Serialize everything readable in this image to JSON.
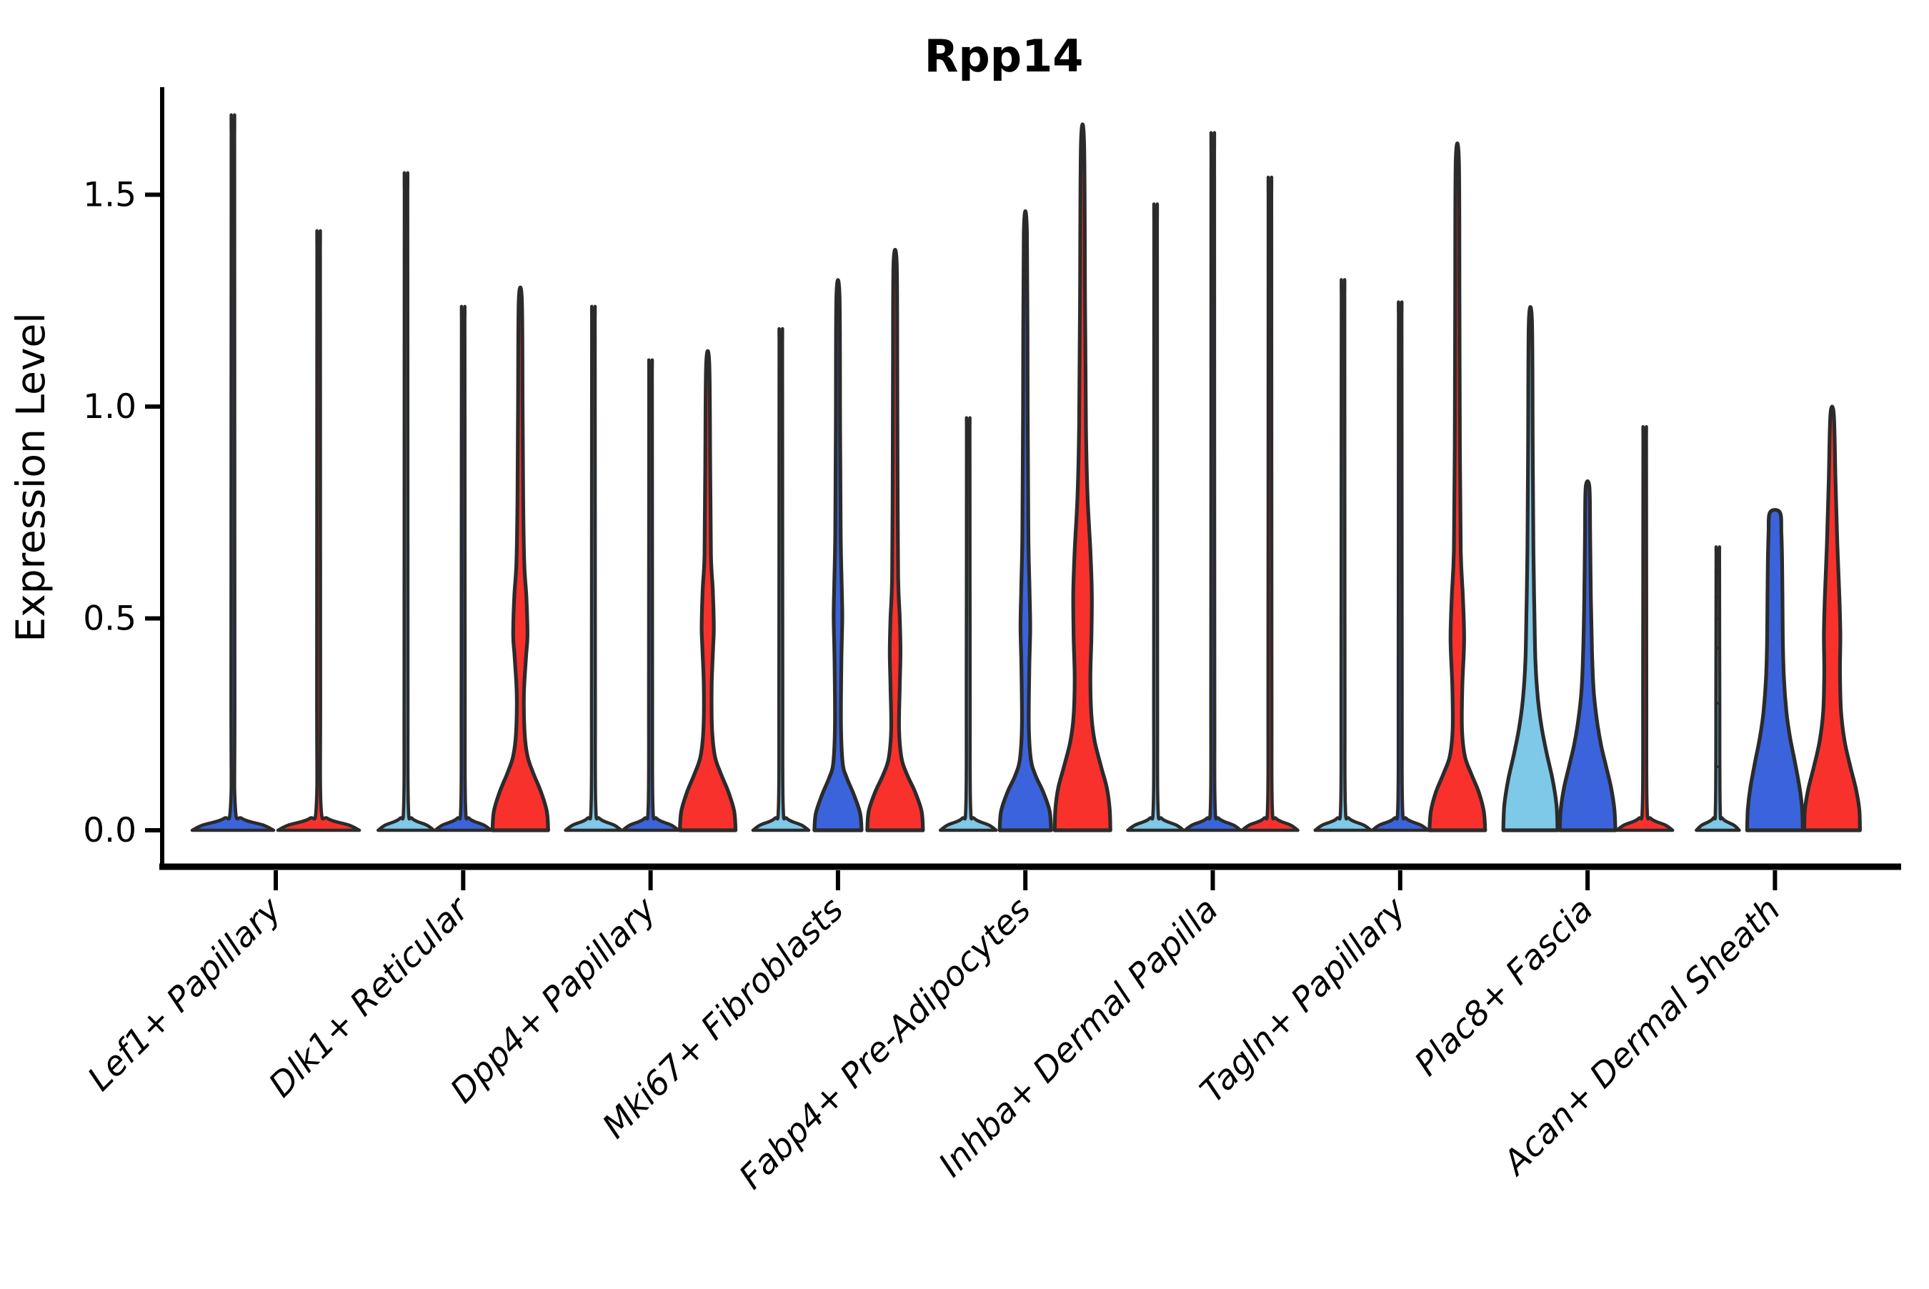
{
  "chart_data": {
    "type": "violin",
    "title": "Rpp14",
    "xlabel": "",
    "ylabel": "Expression Level",
    "ylim": [
      0,
      1.72
    ],
    "yticks": [
      "0.0",
      "0.5",
      "1.0",
      "1.5"
    ],
    "ytick_values": [
      0.0,
      0.5,
      1.0,
      1.5
    ],
    "grid": false,
    "legend": "none",
    "palette": {
      "lightblue": "#7EC8E8",
      "blue": "#3B63DB",
      "red": "#F8312D",
      "outline": "#2B2B2B"
    },
    "categories": [
      "Lef1+ Papillary",
      "Dlk1+ Reticular",
      "Dpp4+ Papillary",
      "Mki67+ Fibroblasts",
      "Fabp4+ Pre-Adipocytes",
      "Inhba+ Dermal Papilla",
      "Tagln+ Papillary",
      "Plac8+ Fascia",
      "Acan+ Dermal Sheath"
    ],
    "violins": [
      [
        {
          "color": "#3B63DB",
          "max": 1.63,
          "kind": "spike",
          "foot_hw": 57,
          "tip": "sharp"
        },
        {
          "color": "#F8312D",
          "max": 1.37,
          "kind": "spike",
          "foot_hw": 57,
          "tip": "sharp"
        }
      ],
      [
        {
          "color": "#7EC8E8",
          "max": 1.5,
          "kind": "spike",
          "foot_hw": 39,
          "tip": "sharp"
        },
        {
          "color": "#3B63DB",
          "max": 1.2,
          "kind": "spike",
          "foot_hw": 39,
          "tip": "sharp"
        },
        {
          "color": "#F8312D",
          "max": 1.25,
          "kind": "shaped",
          "tip": "sharp",
          "profile": [
            [
              0,
              39
            ],
            [
              0.045,
              37
            ],
            [
              0.09,
              29
            ],
            [
              0.135,
              18
            ],
            [
              0.175,
              10
            ],
            [
              0.23,
              6
            ],
            [
              0.32,
              5
            ],
            [
              0.41,
              8
            ],
            [
              0.46,
              10
            ],
            [
              0.55,
              8.5
            ],
            [
              0.63,
              5.5
            ],
            [
              0.78,
              4
            ],
            [
              1.0,
              3.2
            ],
            [
              1.25,
              2.2
            ]
          ]
        }
      ],
      [
        {
          "color": "#7EC8E8",
          "max": 1.2,
          "kind": "spike",
          "foot_hw": 39,
          "tip": "sharp"
        },
        {
          "color": "#3B63DB",
          "max": 1.08,
          "kind": "spike",
          "foot_hw": 39,
          "tip": "sharp"
        },
        {
          "color": "#F8312D",
          "max": 1.1,
          "kind": "shaped",
          "tip": "sharp",
          "profile": [
            [
              0,
              39
            ],
            [
              0.045,
              37
            ],
            [
              0.09,
              29
            ],
            [
              0.135,
              18
            ],
            [
              0.175,
              10
            ],
            [
              0.24,
              6
            ],
            [
              0.34,
              5.5
            ],
            [
              0.43,
              7.5
            ],
            [
              0.48,
              8.5
            ],
            [
              0.57,
              7
            ],
            [
              0.65,
              4.5
            ],
            [
              0.85,
              3.5
            ],
            [
              1.1,
              2.2
            ]
          ]
        }
      ],
      [
        {
          "color": "#7EC8E8",
          "max": 1.15,
          "kind": "spike",
          "foot_hw": 39,
          "tip": "sharp"
        },
        {
          "color": "#3B63DB",
          "max": 1.26,
          "kind": "shaped",
          "tip": "sharp",
          "profile": [
            [
              0,
              33
            ],
            [
              0.04,
              31
            ],
            [
              0.085,
              22
            ],
            [
              0.125,
              12
            ],
            [
              0.16,
              6.5
            ],
            [
              0.25,
              4.2
            ],
            [
              0.4,
              4.8
            ],
            [
              0.5,
              6
            ],
            [
              0.58,
              5.2
            ],
            [
              0.7,
              3.8
            ],
            [
              0.95,
              3
            ],
            [
              1.26,
              2.2
            ]
          ]
        },
        {
          "color": "#F8312D",
          "max": 1.34,
          "kind": "shaped",
          "tip": "sharp",
          "profile": [
            [
              0,
              39
            ],
            [
              0.045,
              37
            ],
            [
              0.09,
              28
            ],
            [
              0.13,
              17
            ],
            [
              0.17,
              9
            ],
            [
              0.24,
              5.5
            ],
            [
              0.34,
              6.5
            ],
            [
              0.42,
              7.5
            ],
            [
              0.5,
              6.5
            ],
            [
              0.6,
              4.2
            ],
            [
              0.85,
              3.4
            ],
            [
              1.1,
              3
            ],
            [
              1.34,
              2.2
            ]
          ]
        }
      ],
      [
        {
          "color": "#7EC8E8",
          "max": 0.95,
          "kind": "spike",
          "foot_hw": 39,
          "tip": "sharp"
        },
        {
          "color": "#3B63DB",
          "max": 1.41,
          "kind": "shaped",
          "tip": "sharp",
          "profile": [
            [
              0,
              36
            ],
            [
              0.045,
              34
            ],
            [
              0.09,
              25
            ],
            [
              0.13,
              14
            ],
            [
              0.17,
              7.5
            ],
            [
              0.25,
              4.8
            ],
            [
              0.38,
              5.5
            ],
            [
              0.48,
              6.8
            ],
            [
              0.57,
              5.8
            ],
            [
              0.7,
              4.2
            ],
            [
              1.0,
              3.2
            ],
            [
              1.41,
              2.2
            ]
          ]
        },
        {
          "color": "#F8312D",
          "max": 1.62,
          "kind": "shaped",
          "tip": "sharp",
          "profile": [
            [
              0,
              39
            ],
            [
              0.05,
              38
            ],
            [
              0.1,
              34
            ],
            [
              0.15,
              26
            ],
            [
              0.21,
              17
            ],
            [
              0.27,
              12.5
            ],
            [
              0.36,
              11
            ],
            [
              0.46,
              12.5
            ],
            [
              0.56,
              13
            ],
            [
              0.66,
              11
            ],
            [
              0.79,
              7
            ],
            [
              0.95,
              4.8
            ],
            [
              1.25,
              3.5
            ],
            [
              1.62,
              2.2
            ]
          ]
        }
      ],
      [
        {
          "color": "#7EC8E8",
          "max": 1.43,
          "kind": "spike",
          "foot_hw": 39,
          "tip": "sharp"
        },
        {
          "color": "#3B63DB",
          "max": 1.59,
          "kind": "spike",
          "foot_hw": 39,
          "tip": "sharp"
        },
        {
          "color": "#F8312D",
          "max": 1.49,
          "kind": "spike",
          "foot_hw": 39,
          "tip": "sharp"
        }
      ],
      [
        {
          "color": "#7EC8E8",
          "max": 1.26,
          "kind": "spike",
          "foot_hw": 39,
          "tip": "sharp"
        },
        {
          "color": "#3B63DB",
          "max": 1.21,
          "kind": "spike",
          "foot_hw": 39,
          "tip": "sharp"
        },
        {
          "color": "#F8312D",
          "max": 1.58,
          "kind": "shaped",
          "tip": "sharp",
          "profile": [
            [
              0,
              39
            ],
            [
              0.045,
              37
            ],
            [
              0.09,
              30
            ],
            [
              0.135,
              19
            ],
            [
              0.175,
              10.5
            ],
            [
              0.24,
              6.5
            ],
            [
              0.34,
              7
            ],
            [
              0.45,
              9.5
            ],
            [
              0.55,
              7.8
            ],
            [
              0.66,
              4.8
            ],
            [
              0.9,
              3.6
            ],
            [
              1.25,
              3
            ],
            [
              1.58,
              2.2
            ]
          ]
        }
      ],
      [
        {
          "color": "#7EC8E8",
          "max": 1.2,
          "kind": "shaped",
          "tip": "sharp",
          "profile": [
            [
              0,
              38
            ],
            [
              0.06,
              36.5
            ],
            [
              0.12,
              31
            ],
            [
              0.18,
              23
            ],
            [
              0.24,
              16
            ],
            [
              0.31,
              10.5
            ],
            [
              0.4,
              7
            ],
            [
              0.52,
              5.5
            ],
            [
              0.66,
              4.2
            ],
            [
              0.92,
              3.2
            ],
            [
              1.2,
              2.2
            ]
          ]
        },
        {
          "color": "#3B63DB",
          "max": 0.81,
          "kind": "shaped",
          "tip": "sharp",
          "profile": [
            [
              0,
              39
            ],
            [
              0.05,
              37.5
            ],
            [
              0.1,
              33
            ],
            [
              0.15,
              26
            ],
            [
              0.2,
              19
            ],
            [
              0.26,
              13
            ],
            [
              0.33,
              8.5
            ],
            [
              0.42,
              6.2
            ],
            [
              0.55,
              4.6
            ],
            [
              0.7,
              3.6
            ],
            [
              0.81,
              2.6
            ]
          ]
        },
        {
          "color": "#F8312D",
          "max": 0.93,
          "kind": "spike",
          "foot_hw": 39,
          "tip": "sharp"
        }
      ],
      [
        {
          "color": "#7EC8E8",
          "max": 0.66,
          "kind": "spike",
          "foot_hw": 30,
          "tip": "sharp",
          "marks": [
            0.66,
            0.635,
            0.61,
            0.55,
            0.5,
            0.43,
            0.3,
            0.15
          ]
        },
        {
          "color": "#3B63DB",
          "max": 0.75,
          "kind": "shaped",
          "tip": "blunt",
          "profile": [
            [
              0,
              39
            ],
            [
              0.05,
              38
            ],
            [
              0.1,
              34.5
            ],
            [
              0.16,
              28
            ],
            [
              0.22,
              21
            ],
            [
              0.28,
              16
            ],
            [
              0.36,
              12.5
            ],
            [
              0.45,
              11
            ],
            [
              0.55,
              10.5
            ],
            [
              0.63,
              10
            ],
            [
              0.7,
              9
            ],
            [
              0.75,
              7
            ]
          ]
        },
        {
          "color": "#F8312D",
          "max": 0.98,
          "kind": "shaped",
          "tip": "sharp",
          "profile": [
            [
              0,
              39
            ],
            [
              0.05,
              38
            ],
            [
              0.1,
              33
            ],
            [
              0.15,
              25.5
            ],
            [
              0.21,
              17.5
            ],
            [
              0.28,
              12.5
            ],
            [
              0.37,
              11
            ],
            [
              0.46,
              11.5
            ],
            [
              0.55,
              10.2
            ],
            [
              0.68,
              7.2
            ],
            [
              0.82,
              4.8
            ],
            [
              0.98,
              2.4
            ]
          ]
        }
      ]
    ]
  }
}
